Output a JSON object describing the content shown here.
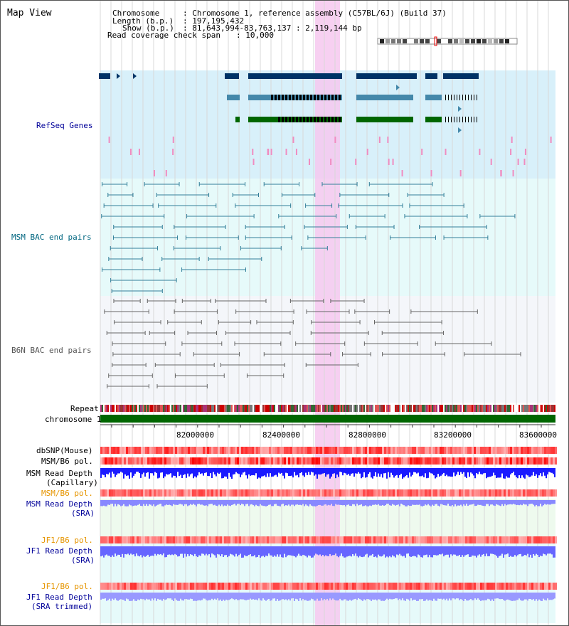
{
  "view_title": "Map View",
  "info": {
    "chromosome_key": "Chromosome",
    "chromosome_val": ": Chromosome 1, reference assembly (C57BL/6J) (Build 37)",
    "length_key": "Length (b.p.)",
    "length_val": ": 197,195,432",
    "show_key": "Show (b.p.)",
    "show_val": ": 81,643,994-83,763,137 : 2,119,144 bp",
    "span_key": "Read coverage check span",
    "span_val": ": 10,000"
  },
  "tracks": {
    "refseq": "RefSeq Genes",
    "msm_bac": "MSM BAC end pairs",
    "b6n_bac": "B6N BAC end pairs",
    "repeat": "Repeat",
    "chromosome": "chromosome 1",
    "dbsnp": "dbSNP(Mouse)",
    "msm_b6_pol_1": "MSM/B6 pol.",
    "msm_depth_cap_1": "MSM Read Depth",
    "msm_depth_cap_2": "(Capillary)",
    "msm_b6_pol_2": "MSM/B6 pol.",
    "msm_depth_sra_1": "MSM Read Depth",
    "msm_depth_sra_2": "(SRA)",
    "jf1_pol_1": "JF1/B6 pol.",
    "jf1_depth_sra_1": "JF1 Read Depth",
    "jf1_depth_sra_2": "(SRA)",
    "jf1_pol_2": "JF1/B6 pol.",
    "jf1_depth_trim_1": "JF1 Read Depth",
    "jf1_depth_trim_2": "(SRA trimmed)"
  },
  "axis": {
    "ticks": [
      "82000000",
      "82400000",
      "82800000",
      "83200000",
      "83600000"
    ]
  },
  "colors": {
    "refseq_bg": "#d8f0fa",
    "msm_bg": "#e6fafa",
    "b6n_bg": "#f4f6fa",
    "highlight": "#f6c8ee",
    "navy_label": "#000099",
    "teal_label": "#006680",
    "gray_label": "#555555",
    "orange_label": "#e69500",
    "chrom_green": "#006600"
  }
}
